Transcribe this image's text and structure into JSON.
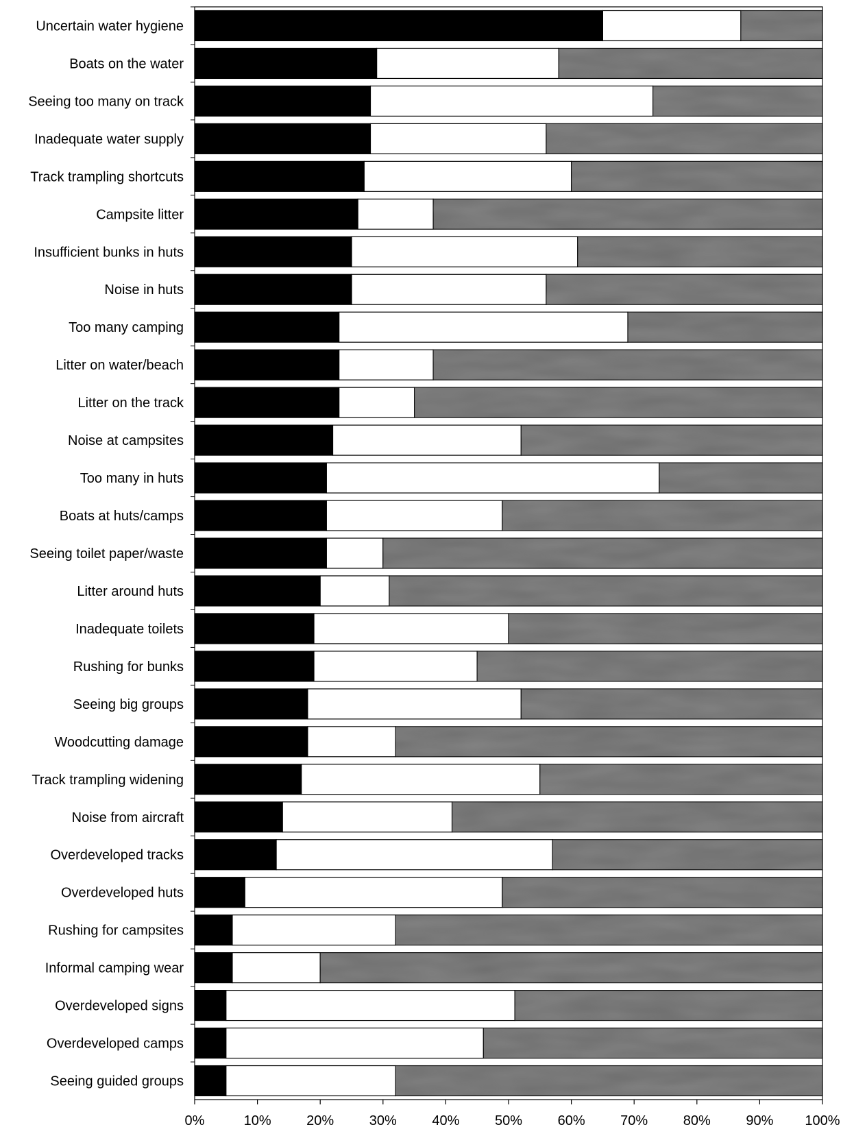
{
  "chart_data": {
    "type": "bar",
    "orientation": "horizontal",
    "stacked": true,
    "percent": true,
    "categories": [
      "Uncertain water hygiene",
      "Boats on the water",
      "Seeing too many on track",
      "Inadequate water supply",
      "Track trampling shortcuts",
      "Campsite litter",
      "Insufficient bunks in huts",
      "Noise in huts",
      "Too many camping",
      "Litter on water/beach",
      "Litter on the track",
      "Noise at campsites",
      "Too many in huts",
      "Boats at huts/camps",
      "Seeing toilet paper/waste",
      "Litter around huts",
      "Inadequate toilets",
      "Rushing for bunks",
      "Seeing big groups",
      "Woodcutting damage",
      "Track trampling widening",
      "Noise from aircraft",
      "Overdeveloped tracks",
      "Overdeveloped huts",
      "Rushing for campsites",
      "Informal camping wear",
      "Overdeveloped signs",
      "Overdeveloped camps",
      "Seeing guided groups"
    ],
    "series": [
      {
        "color": "#000000",
        "values": [
          65,
          29,
          28,
          28,
          27,
          26,
          25,
          25,
          23,
          23,
          23,
          22,
          21,
          21,
          21,
          20,
          19,
          19,
          18,
          18,
          17,
          14,
          13,
          8,
          6,
          6,
          5,
          5,
          5
        ]
      },
      {
        "color": "#ffffff",
        "values": [
          22,
          29,
          45,
          28,
          33,
          12,
          36,
          31,
          46,
          15,
          12,
          30,
          53,
          28,
          9,
          11,
          31,
          26,
          34,
          14,
          38,
          27,
          44,
          41,
          26,
          14,
          46,
          41,
          27
        ]
      },
      {
        "color": "#6e6e6e",
        "values": [
          13,
          42,
          27,
          44,
          40,
          62,
          39,
          44,
          31,
          62,
          65,
          48,
          26,
          51,
          70,
          69,
          50,
          55,
          48,
          68,
          45,
          59,
          43,
          51,
          68,
          80,
          49,
          54,
          68
        ]
      }
    ],
    "x_ticks": [
      "0%",
      "10%",
      "20%",
      "30%",
      "40%",
      "50%",
      "60%",
      "70%",
      "80%",
      "90%",
      "100%"
    ],
    "xlim": [
      0,
      100
    ],
    "grid": false,
    "legend": "none"
  }
}
